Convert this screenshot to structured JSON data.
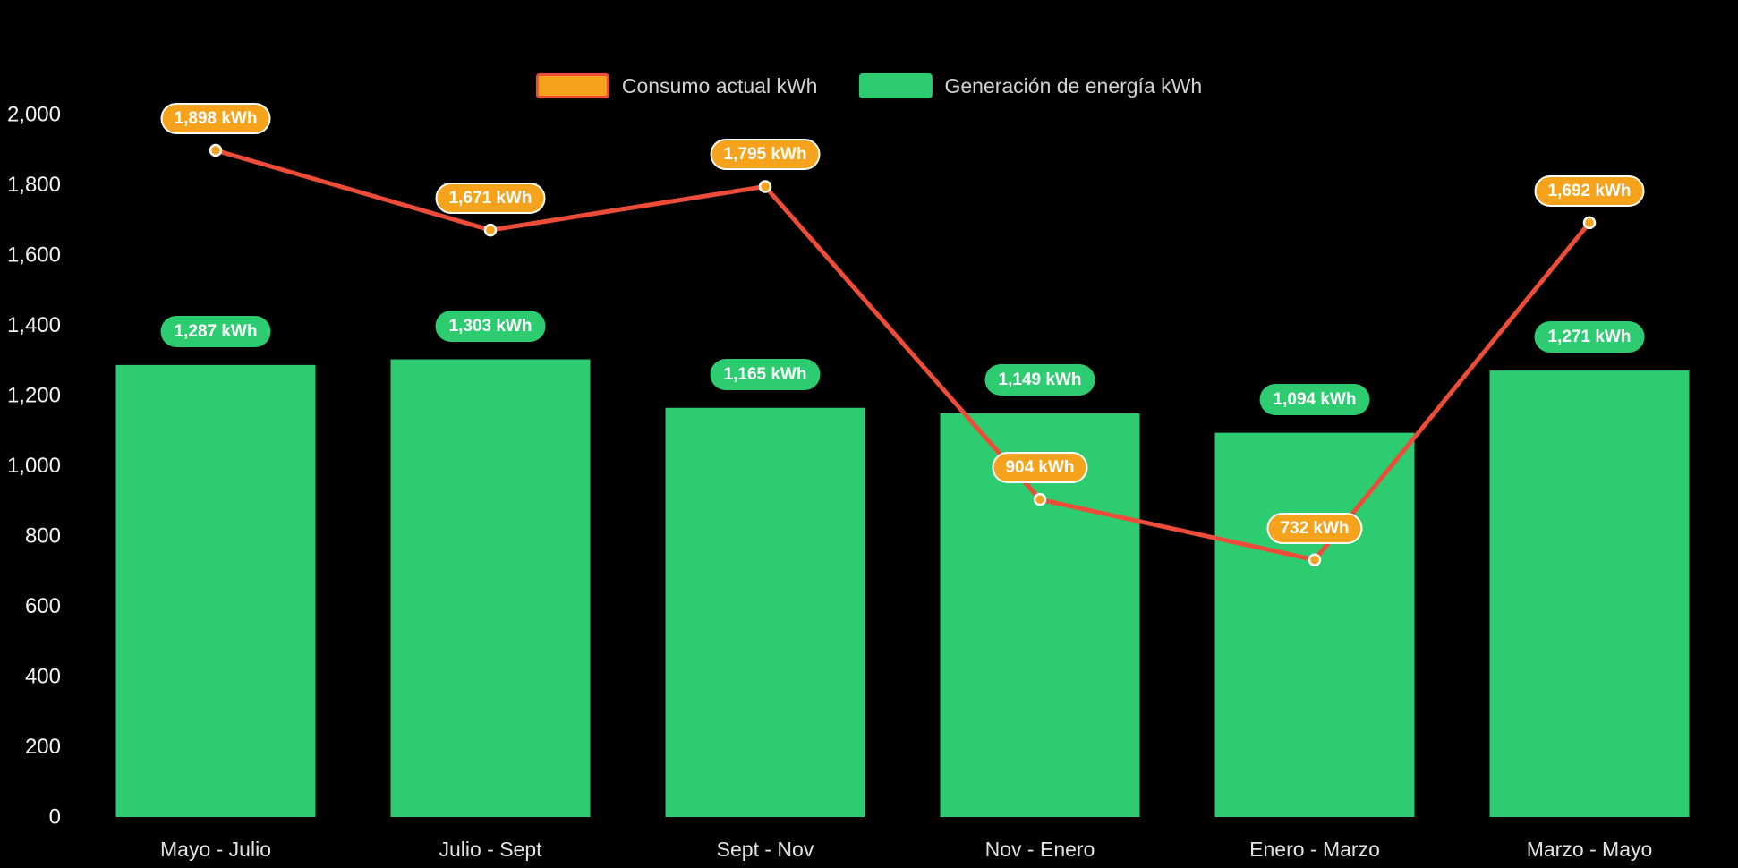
{
  "colors": {
    "background": "#000000",
    "bar_green": "#2ecc71",
    "line_red": "#ed4c39",
    "point_orange": "#f5a31c",
    "point_stroke": "#ffffff",
    "badge_green_bg": "#2ecc71",
    "badge_orange_bg": "#f5a31c",
    "badge_orange_border": "#ffffff",
    "badge_text": "#ffffff",
    "axis_text": "#f2f2f2",
    "category_text": "#e3e3e3",
    "legend_text": "#d2d2d2",
    "legend_consumo_fill": "#f5a31c",
    "legend_consumo_border": "#ed4c39",
    "legend_generacion_fill": "#2ecc71"
  },
  "legend": {
    "consumo_label": "Consumo actual kWh",
    "generacion_label": "Generación de energía kWh"
  },
  "chart_data": {
    "type": "bar+line",
    "title": "",
    "xlabel": "",
    "ylabel": "",
    "categories": [
      "Mayo - Julio",
      "Julio - Sept",
      "Sept - Nov",
      "Nov - Enero",
      "Enero - Marzo",
      "Marzo - Mayo"
    ],
    "series": [
      {
        "name": "Consumo actual kWh",
        "type": "line",
        "values": [
          1898,
          1671,
          1795,
          904,
          732,
          1692
        ],
        "labels": [
          "1,898 kWh",
          "1,671 kWh",
          "1,795 kWh",
          "904 kWh",
          "732 kWh",
          "1,692 kWh"
        ]
      },
      {
        "name": "Generación de energía kWh",
        "type": "bar",
        "values": [
          1287,
          1303,
          1165,
          1149,
          1094,
          1271
        ],
        "labels": [
          "1,287 kWh",
          "1,303 kWh",
          "1,165 kWh",
          "1,149 kWh",
          "1,094 kWh",
          "1,271 kWh"
        ]
      }
    ],
    "y_ticks": [
      {
        "value": 0,
        "label": "0"
      },
      {
        "value": 200,
        "label": "200"
      },
      {
        "value": 400,
        "label": "400"
      },
      {
        "value": 600,
        "label": "600"
      },
      {
        "value": 800,
        "label": "800"
      },
      {
        "value": 1000,
        "label": "1,000"
      },
      {
        "value": 1200,
        "label": "1,200"
      },
      {
        "value": 1400,
        "label": "1,400"
      },
      {
        "value": 1600,
        "label": "1,600"
      },
      {
        "value": 1800,
        "label": "1,800"
      },
      {
        "value": 2000,
        "label": "2,000"
      }
    ],
    "ylim": [
      0,
      2000
    ],
    "grid": false,
    "legend_position": "top-center"
  }
}
